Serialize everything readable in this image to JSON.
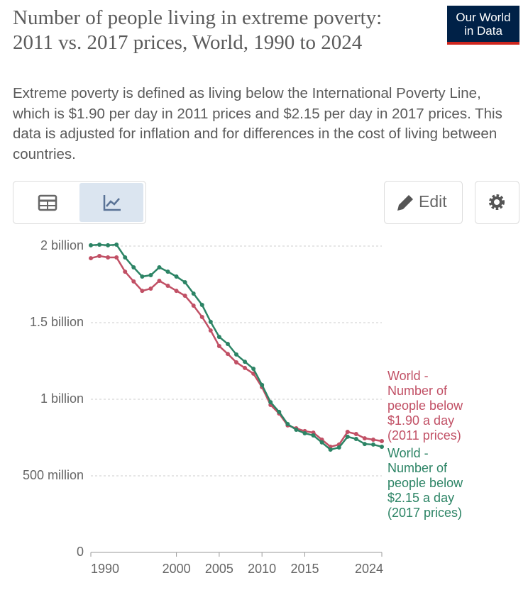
{
  "logo": [
    "Our World",
    "in Data"
  ],
  "controls": {
    "edit": "Edit"
  },
  "chart_data": {
    "type": "line",
    "title": "Number of people living in extreme poverty: 2011 vs. 2017 prices, World, 1990 to 2024",
    "subtitle": "Extreme poverty is defined as living below the International Poverty Line, which is $1.90 per day in 2011 prices and $2.15 per day in 2017 prices. This data is adjusted for inflation and for differences in the cost of living between countries.",
    "x": [
      1990,
      1991,
      1992,
      1993,
      1994,
      1995,
      1996,
      1997,
      1998,
      1999,
      2000,
      2001,
      2002,
      2003,
      2004,
      2005,
      2006,
      2007,
      2008,
      2009,
      2010,
      2011,
      2012,
      2013,
      2014,
      2015,
      2016,
      2017,
      2018,
      2019,
      2020,
      2021,
      2022,
      2023,
      2024
    ],
    "xlim": [
      1990,
      2024
    ],
    "xticks": [
      1990,
      2000,
      2005,
      2010,
      2015,
      2024
    ],
    "ylim": [
      0,
      2000000000
    ],
    "yticks": [
      {
        "value": 0,
        "label": "0"
      },
      {
        "value": 500000000,
        "label": "500 million"
      },
      {
        "value": 1000000000,
        "label": "1 billion"
      },
      {
        "value": 1500000000,
        "label": "1.5 billion"
      },
      {
        "value": 2000000000,
        "label": "2 billion"
      }
    ],
    "grid": true,
    "series": [
      {
        "name": "World - Number of people below $1.90 a day (2011 prices)",
        "color": "#c15065",
        "values": [
          1921000000,
          1935000000,
          1926000000,
          1926000000,
          1833000000,
          1769000000,
          1708000000,
          1722000000,
          1773000000,
          1741000000,
          1708000000,
          1676000000,
          1611000000,
          1537000000,
          1449000000,
          1347000000,
          1296000000,
          1241000000,
          1204000000,
          1167000000,
          1079000000,
          963000000,
          907000000,
          829000000,
          810000000,
          792000000,
          782000000,
          736000000,
          690000000,
          704000000,
          787000000,
          773000000,
          745000000,
          736000000,
          727000000
        ]
      },
      {
        "name": "World - Number of people below $2.15 a day (2017 prices)",
        "color": "#2c8465",
        "values": [
          2005000000,
          2009000000,
          2005000000,
          2009000000,
          1926000000,
          1861000000,
          1801000000,
          1810000000,
          1861000000,
          1833000000,
          1801000000,
          1764000000,
          1690000000,
          1616000000,
          1505000000,
          1407000000,
          1361000000,
          1292000000,
          1245000000,
          1199000000,
          1093000000,
          981000000,
          917000000,
          838000000,
          801000000,
          778000000,
          764000000,
          718000000,
          671000000,
          685000000,
          755000000,
          741000000,
          708000000,
          704000000,
          690000000
        ]
      }
    ]
  }
}
